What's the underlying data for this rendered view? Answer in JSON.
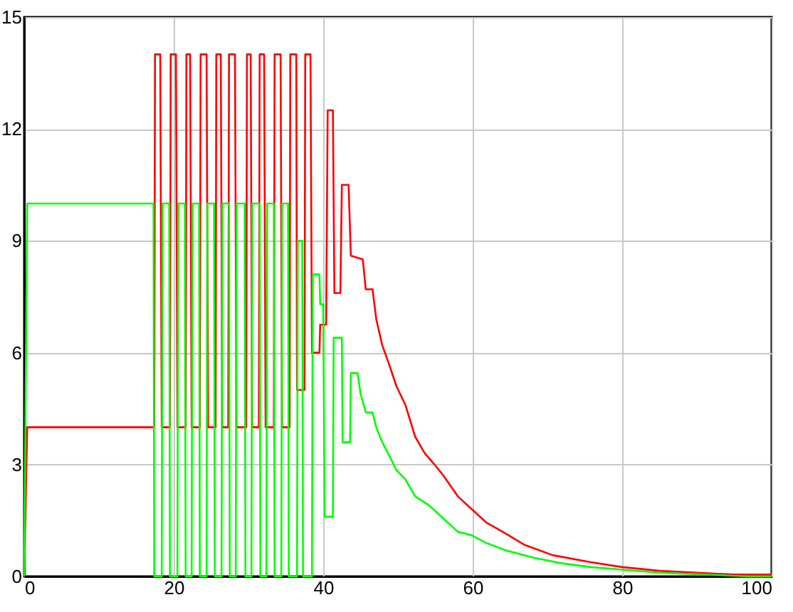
{
  "chart_data": {
    "type": "line",
    "xlim": [
      0,
      100
    ],
    "ylim": [
      0,
      15
    ],
    "xticks": [
      0,
      20,
      40,
      60,
      80,
      100
    ],
    "yticks": [
      0,
      3,
      6,
      9,
      12,
      15
    ],
    "grid": true,
    "legend": false,
    "marker": "none",
    "line_style": "solid",
    "series": [
      {
        "color": "#ff0000",
        "x": [
          0,
          0.4,
          17.4,
          17.5,
          18.2,
          18.4,
          19.5,
          19.6,
          20.3,
          20.5,
          21.6,
          21.7,
          22.2,
          22.4,
          23.5,
          23.6,
          24.4,
          24.6,
          25.6,
          25.7,
          26.3,
          26.5,
          27.3,
          27.4,
          28.2,
          28.4,
          29.7,
          29.8,
          30.3,
          30.5,
          31.4,
          31.5,
          32.1,
          32.3,
          33.4,
          33.5,
          34.3,
          34.5,
          35.5,
          35.6,
          36.4,
          36.5,
          37.5,
          37.6,
          38.3,
          38.5,
          39.5,
          39.6,
          40.4,
          40.6,
          41.3,
          41.5,
          42.3,
          42.5,
          43.4,
          43.7,
          45.3,
          45.7,
          46.6,
          47.1,
          47.9,
          48.8,
          49.8,
          51.0,
          52.3,
          53.6,
          54.9,
          56.1,
          58.0,
          59.9,
          61.8,
          64.4,
          66.9,
          70.7,
          75.8,
          80,
          85,
          90,
          95,
          100
        ],
        "values": [
          0,
          4,
          4,
          14,
          14,
          4,
          4,
          14,
          14,
          4,
          4,
          14,
          14,
          4,
          4,
          14,
          14,
          4,
          4,
          14,
          14,
          4,
          4,
          14,
          14,
          4,
          4,
          14,
          14,
          4,
          4,
          14,
          14,
          4,
          4,
          14,
          14,
          4,
          4,
          14,
          14,
          5,
          5,
          14,
          14,
          6,
          6,
          6.75,
          6.75,
          12.5,
          12.5,
          7.6,
          7.6,
          10.5,
          10.5,
          8.6,
          8.5,
          7.7,
          7.7,
          6.9,
          6.2,
          5.7,
          5.1,
          4.6,
          3.75,
          3.3,
          3.0,
          2.7,
          2.15,
          1.8,
          1.45,
          1.15,
          0.85,
          0.57,
          0.38,
          0.25,
          0.15,
          0.1,
          0.05,
          0.05
        ]
      },
      {
        "color": "#00ff00",
        "x": [
          0,
          0.4,
          17.3,
          17.4,
          18.4,
          18.5,
          19.4,
          19.5,
          20.5,
          20.6,
          21.5,
          21.6,
          22.4,
          22.5,
          23.4,
          23.5,
          24.4,
          24.5,
          25.4,
          25.5,
          26.4,
          26.5,
          27.4,
          27.5,
          28.3,
          28.4,
          29.5,
          29.6,
          30.4,
          30.5,
          31.5,
          31.6,
          32.4,
          32.5,
          33.4,
          33.5,
          34.4,
          34.5,
          35.3,
          35.4,
          36.5,
          36.6,
          37.2,
          37.3,
          38.5,
          38.6,
          39.5,
          39.6,
          40.0,
          40.2,
          41.3,
          41.4,
          42.5,
          42.6,
          43.6,
          43.7,
          44.6,
          45.0,
          45.7,
          46.6,
          47.1,
          47.9,
          48.8,
          49.8,
          51.0,
          52.3,
          54.2,
          56.1,
          58.0,
          59.9,
          61.8,
          64.4,
          68.2,
          72.0,
          75.8,
          80,
          85,
          90,
          97,
          100
        ],
        "values": [
          0,
          10,
          10,
          0,
          0,
          10,
          10,
          0,
          0,
          10,
          10,
          0,
          0,
          10,
          10,
          0,
          0,
          10,
          10,
          0,
          0,
          10,
          10,
          0,
          0,
          10,
          10,
          0,
          0,
          10,
          10,
          0,
          0,
          10,
          10,
          0,
          0,
          10,
          10,
          0,
          0,
          9,
          9,
          0,
          0,
          8.1,
          8.1,
          7.3,
          7.3,
          1.6,
          1.6,
          6.4,
          6.4,
          3.6,
          3.6,
          5.45,
          5.45,
          4.9,
          4.4,
          4.4,
          4.0,
          3.6,
          3.25,
          2.85,
          2.6,
          2.15,
          1.9,
          1.55,
          1.2,
          1.1,
          0.9,
          0.7,
          0.5,
          0.35,
          0.25,
          0.18,
          0.1,
          0.06,
          0,
          0
        ]
      }
    ]
  }
}
